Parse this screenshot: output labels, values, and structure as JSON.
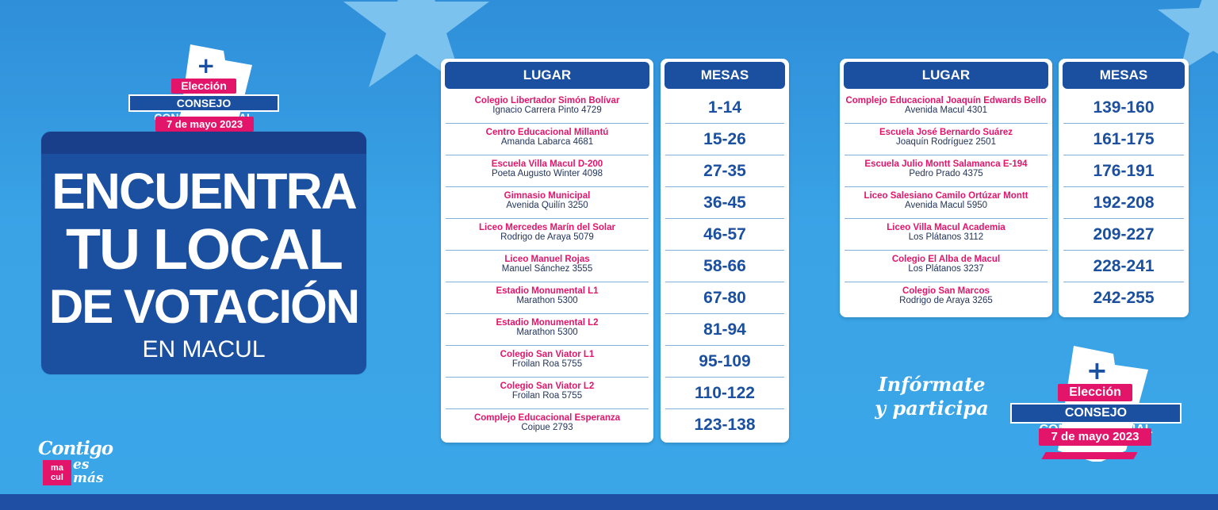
{
  "colors": {
    "background": "#3aa3e6",
    "navy": "#1b4fa0",
    "pink": "#e3156b",
    "white": "#ffffff",
    "address_text": "#23355c"
  },
  "badge": {
    "icon": "plus-icon",
    "plus": "+",
    "election": "Elección",
    "council": "CONSEJO CONSTITUCIONAL",
    "date": "7 de mayo 2023"
  },
  "title": {
    "line1": "ENCUENTRA",
    "line2": "TU LOCAL",
    "line3": "DE VOTACIÓN",
    "subtitle": "EN MACUL"
  },
  "tables": {
    "lugar_header": "LUGAR",
    "mesas_header": "MESAS",
    "left": [
      {
        "name": "Colegio Libertador Simón Bolívar",
        "address": "Ignacio Carrera Pinto 4729",
        "mesas": "1-14"
      },
      {
        "name": "Centro Educacional Millantú",
        "address": "Amanda Labarca 4681",
        "mesas": "15-26"
      },
      {
        "name": "Escuela Villa Macul D-200",
        "address": "Poeta Augusto Winter 4098",
        "mesas": "27-35"
      },
      {
        "name": "Gimnasio Municipal",
        "address": "Avenida Quilín 3250",
        "mesas": "36-45"
      },
      {
        "name": "Liceo Mercedes Marín del Solar",
        "address": "Rodrigo de Araya 5079",
        "mesas": "46-57"
      },
      {
        "name": "Liceo Manuel Rojas",
        "address": "Manuel Sánchez 3555",
        "mesas": "58-66"
      },
      {
        "name": "Estadio Monumental L1",
        "address": "Marathon 5300",
        "mesas": "67-80"
      },
      {
        "name": "Estadio Monumental L2",
        "address": "Marathon 5300",
        "mesas": "81-94"
      },
      {
        "name": "Colegio San Viator L1",
        "address": "Froilan Roa 5755",
        "mesas": "95-109"
      },
      {
        "name": "Colegio San Viator L2",
        "address": "Froilan Roa 5755",
        "mesas": "110-122"
      },
      {
        "name": "Complejo Educacional Esperanza",
        "address": "Coipue 2793",
        "mesas": "123-138"
      }
    ],
    "right": [
      {
        "name": "Complejo Educacional Joaquín Edwards Bello",
        "address": "Avenida Macul 4301",
        "mesas": "139-160"
      },
      {
        "name": "Escuela José Bernardo Suárez",
        "address": "Joaquín Rodríguez 2501",
        "mesas": "161-175"
      },
      {
        "name": "Escuela Julio Montt Salamanca E-194",
        "address": "Pedro Prado 4375",
        "mesas": "176-191"
      },
      {
        "name": "Liceo Salesiano Camilo Ortúzar Montt",
        "address": "Avenida Macul 5950",
        "mesas": "192-208"
      },
      {
        "name": "Liceo Villa Macul Academia",
        "address": "Los Plátanos 3112",
        "mesas": "209-227"
      },
      {
        "name": "Colegio El Alba de Macul",
        "address": "Los Plátanos 3237",
        "mesas": "228-241"
      },
      {
        "name": "Colegio San Marcos",
        "address": "Rodrigo de Araya 3265",
        "mesas": "242-255"
      }
    ]
  },
  "informate": {
    "line1": "Infórmate",
    "line2": "y participa"
  },
  "contigo": {
    "line1": "Contigo",
    "logo_line1": "ma",
    "logo_line2": "cul",
    "line2": "es",
    "line3": "más"
  }
}
